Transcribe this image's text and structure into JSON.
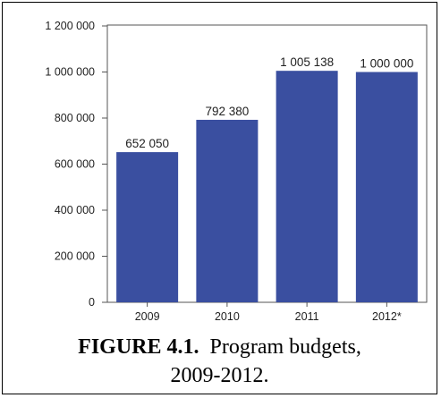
{
  "figure": {
    "caption_label": "FIGURE 4.1.",
    "caption_line1": "Program budgets,",
    "caption_line2": "2009-2012."
  },
  "chart_data": {
    "type": "bar",
    "categories": [
      "2009",
      "2010",
      "2011",
      "2012*"
    ],
    "values": [
      652050,
      792380,
      1005138,
      1000000
    ],
    "value_labels": [
      "652 050",
      "792 380",
      "1 005 138",
      "1 000 000"
    ],
    "yticks": [
      0,
      200000,
      400000,
      600000,
      800000,
      1000000,
      1200000
    ],
    "ytick_labels": [
      "0",
      "200 000",
      "400 000",
      "600 000",
      "800 000",
      "1 000 000",
      "1 200 000"
    ],
    "ylim": [
      0,
      1200000
    ],
    "grid": false,
    "bar_color": "#3a4fa0"
  }
}
